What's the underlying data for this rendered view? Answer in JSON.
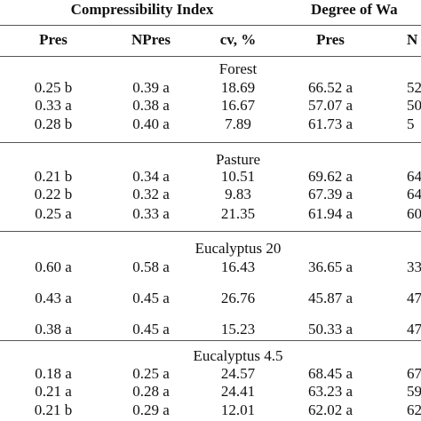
{
  "header": {
    "groups": [
      "Compressibility Index",
      "Degree of Wa"
    ],
    "columns": [
      "Pres",
      "NPres",
      "cv, %",
      "Pres",
      "N"
    ]
  },
  "sections": [
    {
      "name": "Forest",
      "rows": [
        [
          "0.25 b",
          "0.39 a",
          "18.69",
          "66.52 a",
          "52"
        ],
        [
          "0.33 a",
          "0.38 a",
          "16.67",
          "57.07 a",
          "50"
        ],
        [
          "0.28 b",
          "0.40 a",
          "7.89",
          "61.73 a",
          "5"
        ]
      ]
    },
    {
      "name": "Pasture",
      "rows": [
        [
          "0.21 b",
          "0.34 a",
          "10.51",
          "69.62 a",
          "64"
        ],
        [
          "0.22 b",
          "0.32 a",
          "9.83",
          "67.39 a",
          "64"
        ],
        [
          "0.25 a",
          "0.33 a",
          "21.35",
          "61.94 a",
          "60"
        ]
      ]
    },
    {
      "name": "Eucalyptus 20",
      "rows": [
        [
          "0.60 a",
          "0.58 a",
          "16.43",
          "36.65 a",
          "33"
        ],
        [
          "0.43 a",
          "0.45 a",
          "26.76",
          "45.87 a",
          "47"
        ],
        [
          "0.38 a",
          "0.45 a",
          "15.23",
          "50.33 a",
          "47"
        ]
      ]
    },
    {
      "name": "Eucalyptus 4.5",
      "rows": [
        [
          "0.18 a",
          "0.25 a",
          "24.57",
          "68.45 a",
          "67"
        ],
        [
          "0.21 a",
          "0.28 a",
          "24.41",
          "63.23 a",
          "59"
        ],
        [
          "0.21 b",
          "0.29 a",
          "12.01",
          "62.02 a",
          "62"
        ]
      ]
    }
  ]
}
